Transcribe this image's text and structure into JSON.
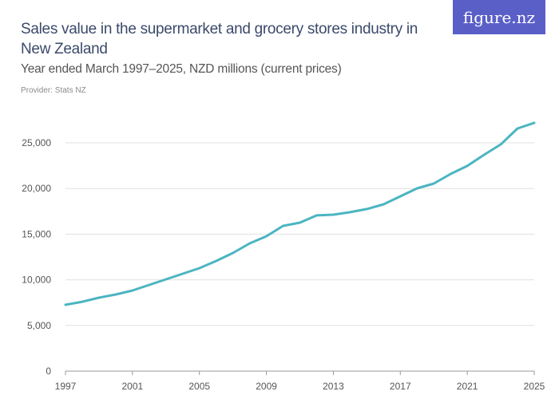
{
  "title": "Sales value in the supermarket and grocery stores industry in New Zealand",
  "subtitle": "Year ended March 1997–2025, NZD millions (current prices)",
  "provider": "Provider: Stats NZ",
  "logo": "figure.nz",
  "colors": {
    "line": "#4bb5c1",
    "logo_bg": "#5a5fc8",
    "grid": "#e0e0e0"
  },
  "chart_data": {
    "type": "line",
    "title": "Sales value in the supermarket and grocery stores industry in New Zealand",
    "subtitle": "Year ended March 1997–2025, NZD millions (current prices)",
    "xlabel": "",
    "ylabel": "",
    "x": [
      1997,
      1998,
      1999,
      2000,
      2001,
      2002,
      2003,
      2004,
      2005,
      2006,
      2007,
      2008,
      2009,
      2010,
      2011,
      2012,
      2013,
      2014,
      2015,
      2016,
      2017,
      2018,
      2019,
      2020,
      2021,
      2022,
      2023,
      2024,
      2025
    ],
    "values": [
      7260,
      7600,
      8040,
      8390,
      8830,
      9440,
      10050,
      10660,
      11280,
      12060,
      12940,
      13990,
      14770,
      15910,
      16260,
      17050,
      17130,
      17400,
      17750,
      18270,
      19140,
      20020,
      20540,
      21590,
      22470,
      23690,
      24830,
      26570,
      27190
    ],
    "xlim": [
      1997,
      2025
    ],
    "ylim": [
      0,
      27500
    ],
    "x_ticks": [
      "1997",
      "2001",
      "2005",
      "2009",
      "2013",
      "2017",
      "2021",
      "2025"
    ],
    "y_ticks": [
      "0",
      "5,000",
      "10,000",
      "15,000",
      "20,000",
      "25,000"
    ],
    "grid": "horizontal",
    "legend": "none"
  }
}
